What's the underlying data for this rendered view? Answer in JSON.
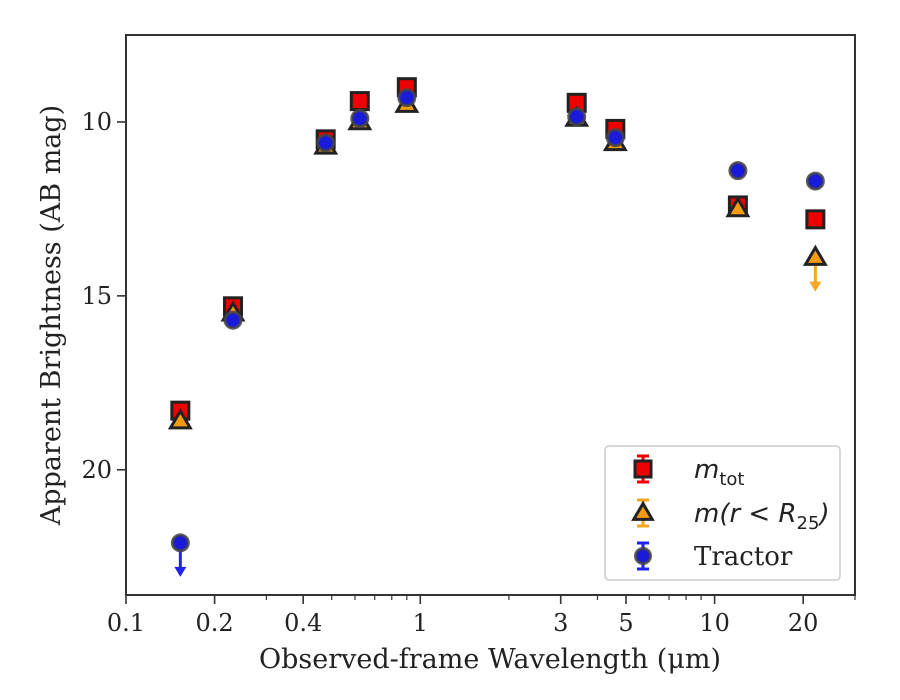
{
  "chart_data": {
    "type": "scatter",
    "xlabel": "Observed-frame Wavelength (μm)",
    "ylabel": "Apparent Brightness (AB mag)",
    "xscale": "log",
    "xlim": [
      0.1,
      30
    ],
    "ylim": [
      23.6,
      7.5
    ],
    "y_inverted": true,
    "x_ticks": [
      {
        "value": 0.1,
        "label": "0.1"
      },
      {
        "value": 0.2,
        "label": "0.2"
      },
      {
        "value": 0.4,
        "label": "0.4"
      },
      {
        "value": 1,
        "label": "1"
      },
      {
        "value": 3,
        "label": "3"
      },
      {
        "value": 5,
        "label": "5"
      },
      {
        "value": 10,
        "label": "10"
      },
      {
        "value": 20,
        "label": "20"
      }
    ],
    "y_ticks": [
      {
        "value": 10,
        "label": "10"
      },
      {
        "value": 15,
        "label": "15"
      },
      {
        "value": 20,
        "label": "20"
      }
    ],
    "legend_position": "lower-right",
    "series": [
      {
        "name": "m_tot",
        "legend_main": "m",
        "legend_sub": "tot",
        "marker": "square",
        "color": "#ee0000",
        "edge": "#222222",
        "points": [
          {
            "x": 0.153,
            "y": 18.3
          },
          {
            "x": 0.231,
            "y": 15.3
          },
          {
            "x": 0.477,
            "y": 10.5
          },
          {
            "x": 0.623,
            "y": 9.4
          },
          {
            "x": 0.9,
            "y": 9.0
          },
          {
            "x": 3.4,
            "y": 9.45
          },
          {
            "x": 4.6,
            "y": 10.2
          },
          {
            "x": 12.0,
            "y": 12.4
          },
          {
            "x": 22.0,
            "y": 12.8
          }
        ]
      },
      {
        "name": "m(r < R25)",
        "legend_main": "m(r < R",
        "legend_sub": "25",
        "legend_tail": ")",
        "marker": "triangle",
        "color": "#f39c12",
        "edge": "#222222",
        "upper_limit_color": "#f5a623",
        "points": [
          {
            "x": 0.153,
            "y": 18.6
          },
          {
            "x": 0.231,
            "y": 15.5
          },
          {
            "x": 0.477,
            "y": 10.7
          },
          {
            "x": 0.623,
            "y": 10.0
          },
          {
            "x": 0.9,
            "y": 9.5
          },
          {
            "x": 3.4,
            "y": 9.9
          },
          {
            "x": 4.6,
            "y": 10.6
          },
          {
            "x": 12.0,
            "y": 12.5
          },
          {
            "x": 22.0,
            "y": 13.9,
            "upper_limit": true
          }
        ]
      },
      {
        "name": "Tractor",
        "legend_main": "Tractor",
        "marker": "circle",
        "color": "#1a1adb",
        "edge": "#444444",
        "upper_limit_color": "#2222ee",
        "points": [
          {
            "x": 0.153,
            "y": 22.1,
            "upper_limit": true
          },
          {
            "x": 0.231,
            "y": 15.7
          },
          {
            "x": 0.477,
            "y": 10.6
          },
          {
            "x": 0.623,
            "y": 9.9
          },
          {
            "x": 0.9,
            "y": 9.3
          },
          {
            "x": 3.4,
            "y": 9.85
          },
          {
            "x": 4.6,
            "y": 10.45
          },
          {
            "x": 12.0,
            "y": 11.4
          },
          {
            "x": 22.0,
            "y": 11.7
          }
        ]
      }
    ]
  }
}
